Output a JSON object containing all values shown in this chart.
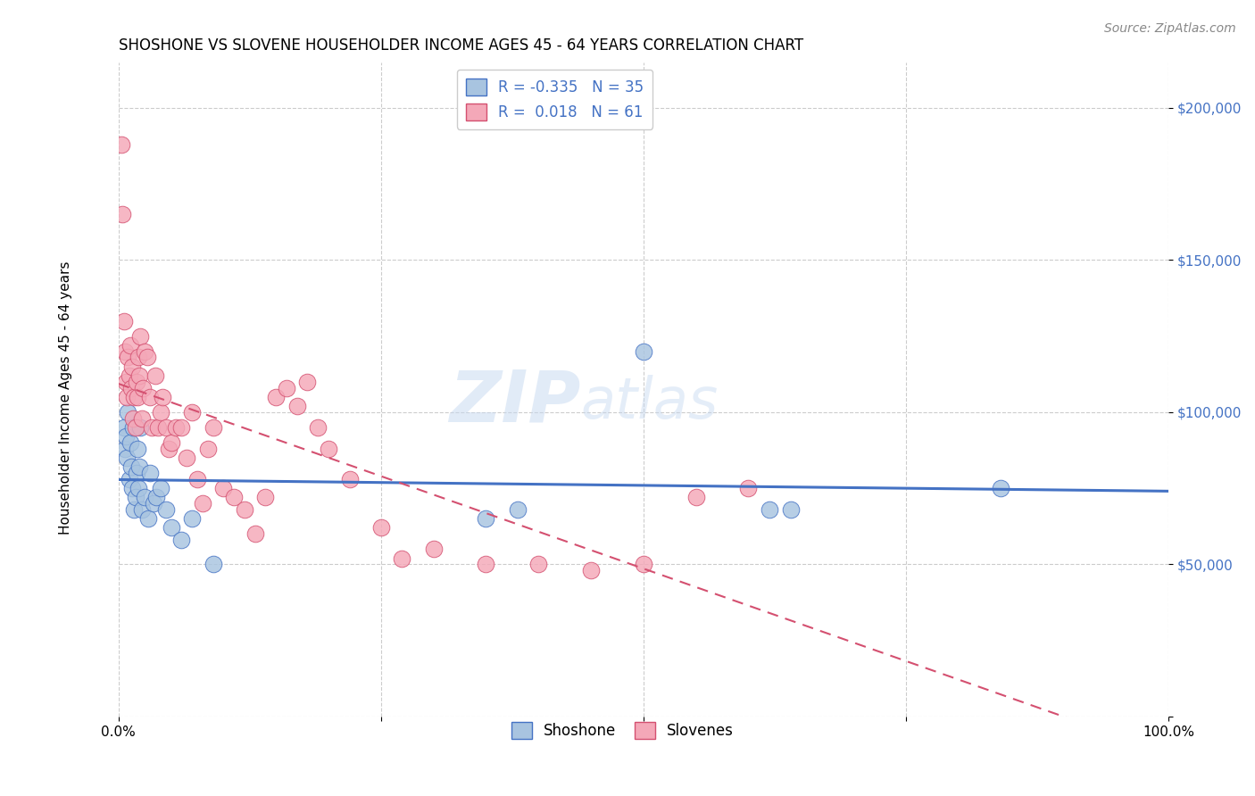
{
  "title": "SHOSHONE VS SLOVENE HOUSEHOLDER INCOME AGES 45 - 64 YEARS CORRELATION CHART",
  "source": "Source: ZipAtlas.com",
  "ylabel": "Householder Income Ages 45 - 64 years",
  "yticks": [
    0,
    50000,
    100000,
    150000,
    200000
  ],
  "ytick_labels": [
    "",
    "$50,000",
    "$100,000",
    "$150,000",
    "$200,000"
  ],
  "xlim": [
    0.0,
    1.0
  ],
  "ylim": [
    0,
    215000
  ],
  "shoshone_R": -0.335,
  "shoshone_N": 35,
  "slovene_R": 0.018,
  "slovene_N": 61,
  "shoshone_color": "#a8c4e0",
  "slovene_color": "#f4a8b8",
  "shoshone_line_color": "#4472c4",
  "slovene_line_color": "#d45070",
  "background_color": "#ffffff",
  "grid_color": "#cccccc",
  "shoshone_x": [
    0.005,
    0.006,
    0.007,
    0.008,
    0.009,
    0.01,
    0.011,
    0.012,
    0.013,
    0.014,
    0.015,
    0.016,
    0.017,
    0.018,
    0.019,
    0.02,
    0.021,
    0.022,
    0.025,
    0.028,
    0.03,
    0.033,
    0.036,
    0.04,
    0.045,
    0.05,
    0.06,
    0.07,
    0.09,
    0.5,
    0.62,
    0.64,
    0.84,
    0.35,
    0.38
  ],
  "shoshone_y": [
    95000,
    88000,
    92000,
    85000,
    100000,
    78000,
    90000,
    82000,
    75000,
    95000,
    68000,
    72000,
    80000,
    88000,
    75000,
    82000,
    95000,
    68000,
    72000,
    65000,
    80000,
    70000,
    72000,
    75000,
    68000,
    62000,
    58000,
    65000,
    50000,
    120000,
    68000,
    68000,
    75000,
    65000,
    68000
  ],
  "slovene_x": [
    0.003,
    0.004,
    0.005,
    0.006,
    0.007,
    0.008,
    0.009,
    0.01,
    0.011,
    0.012,
    0.013,
    0.014,
    0.015,
    0.016,
    0.017,
    0.018,
    0.019,
    0.02,
    0.021,
    0.022,
    0.023,
    0.025,
    0.027,
    0.03,
    0.032,
    0.035,
    0.038,
    0.04,
    0.042,
    0.045,
    0.048,
    0.05,
    0.055,
    0.06,
    0.065,
    0.07,
    0.075,
    0.08,
    0.085,
    0.09,
    0.1,
    0.11,
    0.12,
    0.13,
    0.14,
    0.15,
    0.16,
    0.17,
    0.18,
    0.19,
    0.2,
    0.22,
    0.25,
    0.27,
    0.3,
    0.35,
    0.4,
    0.45,
    0.5,
    0.55,
    0.6
  ],
  "slovene_y": [
    188000,
    165000,
    130000,
    120000,
    110000,
    105000,
    118000,
    112000,
    122000,
    108000,
    115000,
    98000,
    105000,
    95000,
    110000,
    105000,
    118000,
    112000,
    125000,
    98000,
    108000,
    120000,
    118000,
    105000,
    95000,
    112000,
    95000,
    100000,
    105000,
    95000,
    88000,
    90000,
    95000,
    95000,
    85000,
    100000,
    78000,
    70000,
    88000,
    95000,
    75000,
    72000,
    68000,
    60000,
    72000,
    105000,
    108000,
    102000,
    110000,
    95000,
    88000,
    78000,
    62000,
    52000,
    55000,
    50000,
    50000,
    48000,
    50000,
    72000,
    75000
  ],
  "watermark_text": "ZIP",
  "watermark_text2": "atlas",
  "legend_label_shoshone": "Shoshone",
  "legend_label_slovene": "Slovenes",
  "title_fontsize": 12,
  "axis_fontsize": 11,
  "source_fontsize": 10
}
